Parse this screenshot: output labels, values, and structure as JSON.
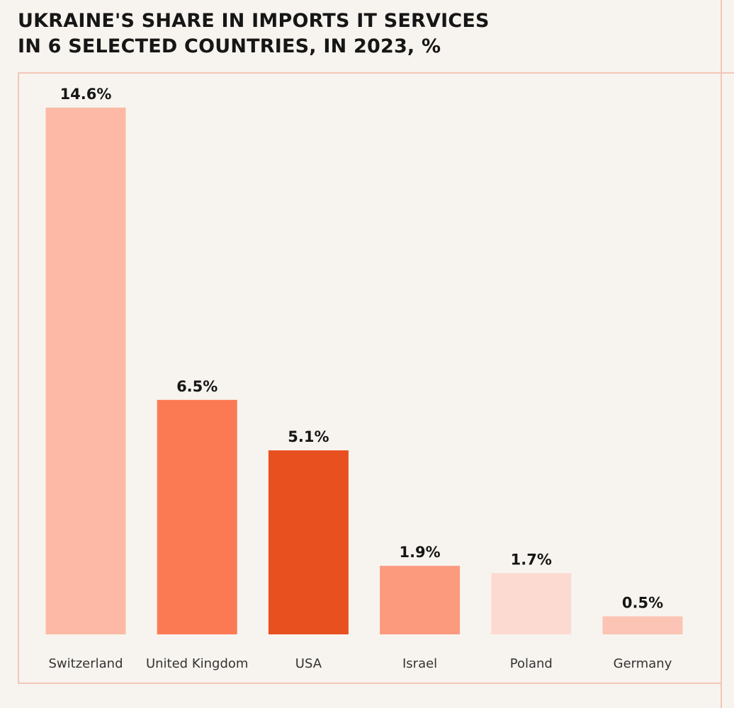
{
  "chart_data": {
    "type": "bar",
    "title": "UKRAINE'S SHARE IN IMPORTS IT SERVICES IN 6 SELECTED COUNTRIES, IN 2023, %",
    "title_lines": [
      "UKRAINE'S SHARE IN IMPORTS IT SERVICES",
      "IN 6 SELECTED COUNTRIES, IN 2023, %"
    ],
    "categories": [
      "Switzerland",
      "United Kingdom",
      "USA",
      "Israel",
      "Poland",
      "Germany"
    ],
    "values": [
      14.6,
      6.5,
      5.1,
      1.9,
      1.7,
      0.5
    ],
    "value_labels": [
      "14.6%",
      "6.5%",
      "5.1%",
      "1.9%",
      "1.7%",
      "0.5%"
    ],
    "bar_colors": [
      "#fdb9a6",
      "#fb7a53",
      "#e8501f",
      "#fc9a7e",
      "#fcdad2",
      "#fcc4b4"
    ],
    "xlabel": "",
    "ylabel": "",
    "ylim": [
      0,
      14.6
    ],
    "grid": false,
    "legend": "none"
  },
  "colors": {
    "background": "#f7f4ef",
    "frame": "#f3c7b8",
    "text": "#161616"
  }
}
